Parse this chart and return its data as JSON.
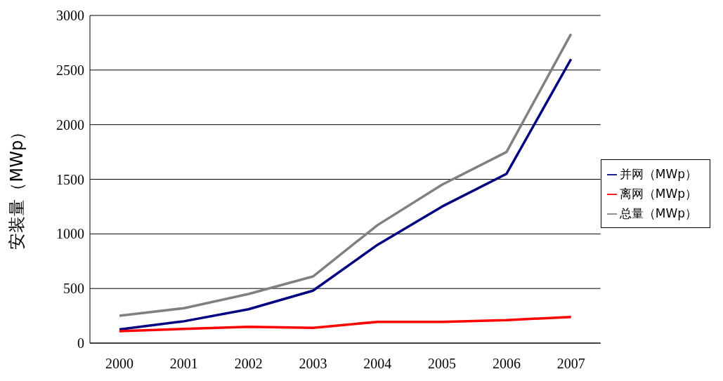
{
  "chart_data": {
    "type": "line",
    "ylabel": "安装量（MWp）",
    "categories": [
      "2000",
      "2001",
      "2002",
      "2003",
      "2004",
      "2005",
      "2006",
      "2007"
    ],
    "series": [
      {
        "name": "并网（MWp）",
        "color": "#000080",
        "values": [
          125,
          200,
          310,
          480,
          900,
          1250,
          1550,
          2600
        ]
      },
      {
        "name": "离网（MWp）",
        "color": "#ff0000",
        "values": [
          110,
          130,
          150,
          140,
          195,
          195,
          210,
          240
        ]
      },
      {
        "name": "总量（MWp）",
        "color": "#808080",
        "values": [
          250,
          320,
          450,
          610,
          1080,
          1450,
          1750,
          2830
        ]
      }
    ],
    "ylim": [
      0,
      3000
    ],
    "yticks": [
      0,
      500,
      1000,
      1500,
      2000,
      2500,
      3000
    ],
    "grid": "y",
    "legend": "right",
    "marker": "none",
    "line_style": "solid"
  }
}
